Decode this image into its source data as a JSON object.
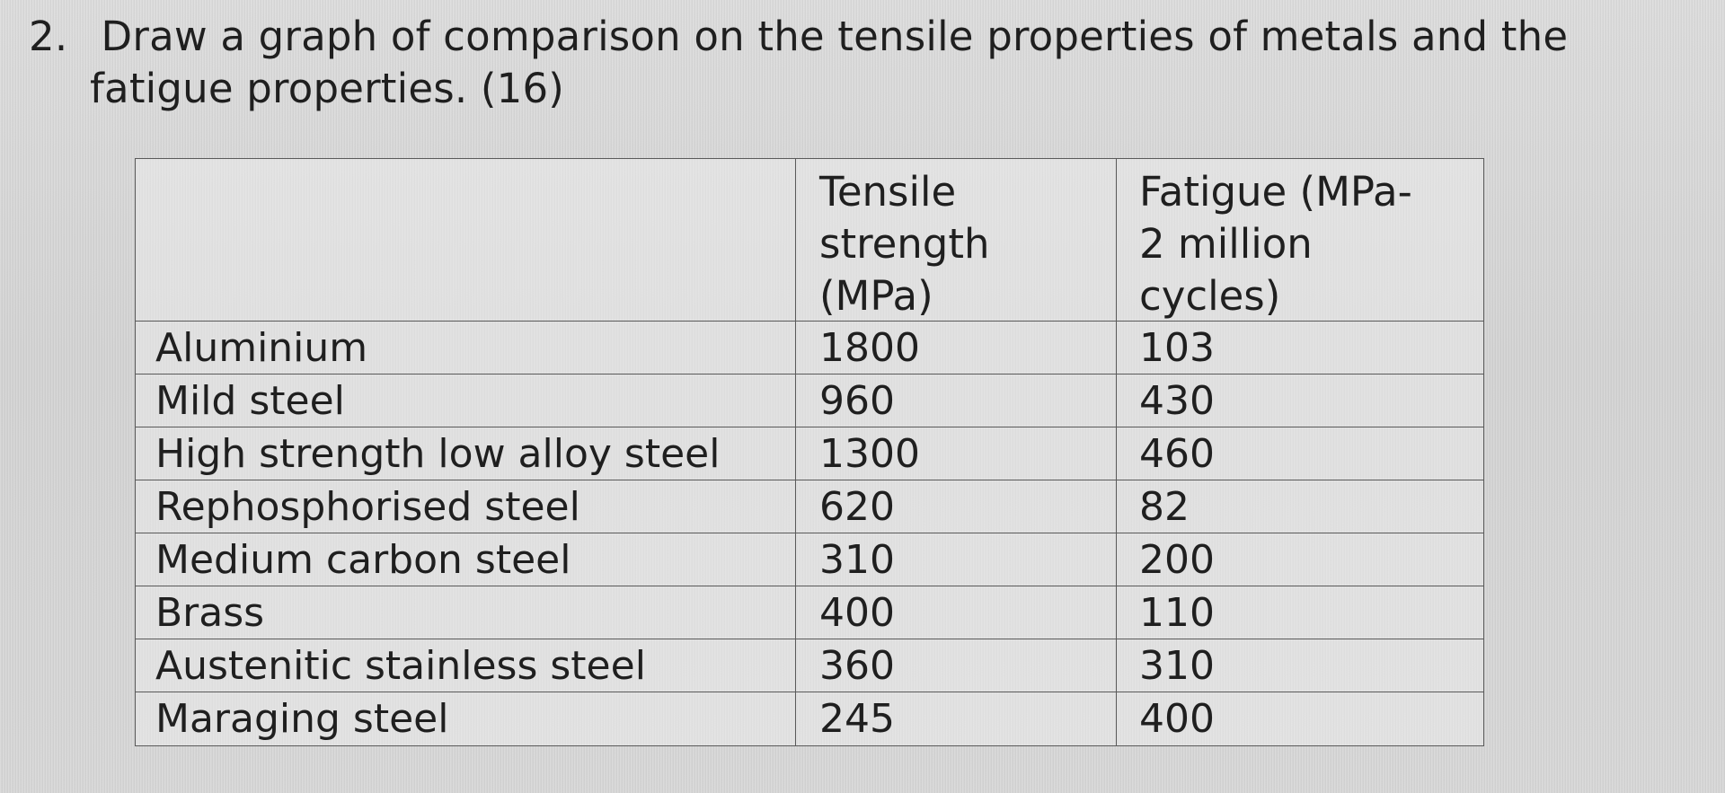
{
  "question": {
    "number": "2.",
    "line1": "Draw a graph of comparison on the tensile properties of metals and the",
    "line2": "fatigue properties. (16)"
  },
  "table": {
    "headers": {
      "tensile": "Tensile\nstrength\n(MPa)",
      "fatigue": "Fatigue (MPa-\n2 million\ncycles)"
    },
    "rows": [
      {
        "metal": "Aluminium",
        "tensile": "1800",
        "fatigue": "103"
      },
      {
        "metal": "Mild steel",
        "tensile": "960",
        "fatigue": "430"
      },
      {
        "metal": "High strength low alloy steel",
        "tensile": "1300",
        "fatigue": "460"
      },
      {
        "metal": "Rephosphorised steel",
        "tensile": "620",
        "fatigue": "82"
      },
      {
        "metal": "Medium carbon steel",
        "tensile": "310",
        "fatigue": "200"
      },
      {
        "metal": "Brass",
        "tensile": "400",
        "fatigue": "110"
      },
      {
        "metal": "Austenitic stainless steel",
        "tensile": "360",
        "fatigue": "310"
      },
      {
        "metal": "Maraging steel",
        "tensile": "245",
        "fatigue": "400"
      }
    ]
  }
}
